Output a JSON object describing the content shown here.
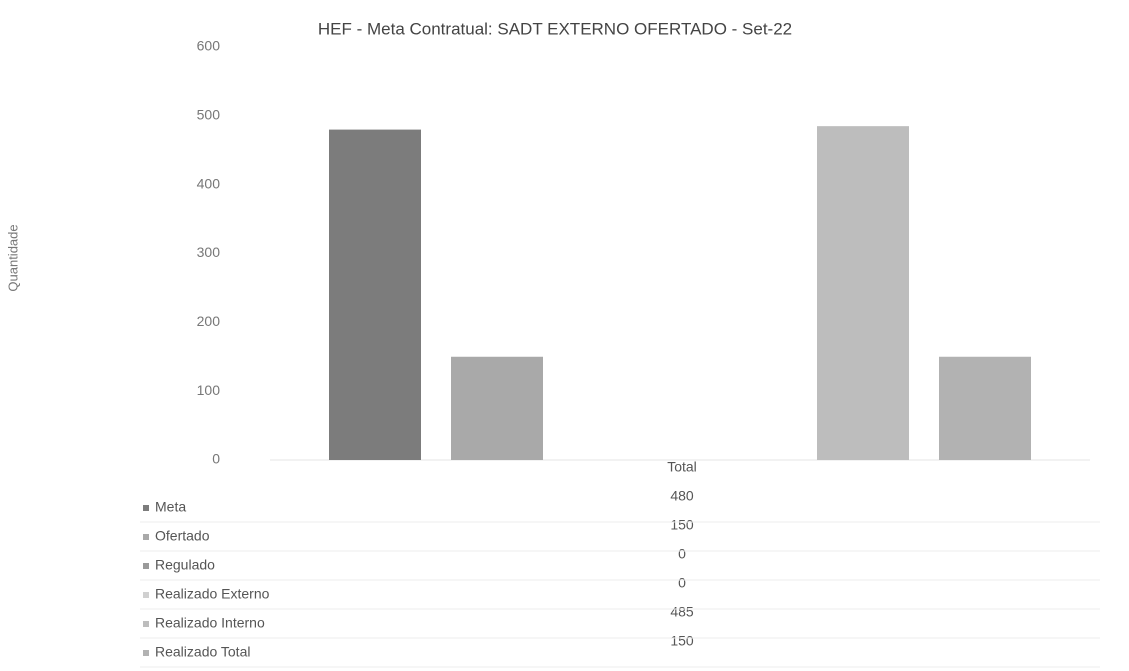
{
  "chart_data": {
    "type": "bar",
    "title": "HEF - Meta Contratual: SADT EXTERNO OFERTADO - Set-22",
    "y_label": "Quantidade",
    "categories": [
      "Total"
    ],
    "series": [
      {
        "name": "Meta",
        "color": "#7c7c7c",
        "values": [
          480
        ]
      },
      {
        "name": "Ofertado",
        "color": "#a9a9a9",
        "values": [
          150
        ]
      },
      {
        "name": "Regulado",
        "color": "#9a9a9a",
        "values": [
          0
        ]
      },
      {
        "name": "Realizado Externo",
        "color": "#d0d0d0",
        "values": [
          0
        ]
      },
      {
        "name": "Realizado Interno",
        "color": "#bdbdbd",
        "values": [
          485
        ]
      },
      {
        "name": "Realizado Total",
        "color": "#b2b2b2",
        "values": [
          150
        ]
      }
    ],
    "ylim": [
      0,
      600
    ],
    "yticks": [
      0,
      100,
      200,
      300,
      400,
      500,
      600
    ],
    "grid": false,
    "data_table": true
  }
}
